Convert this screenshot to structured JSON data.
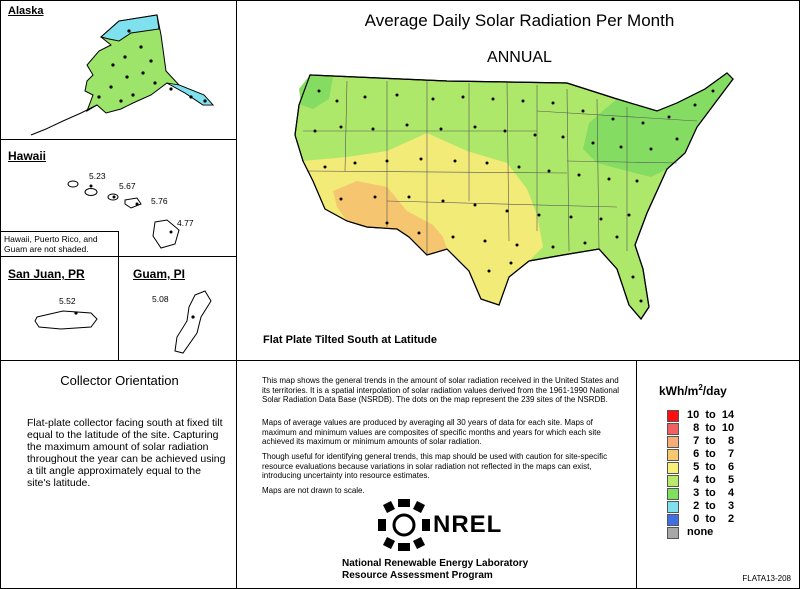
{
  "map_title": "Average Daily Solar Radiation Per Month",
  "period": "ANNUAL",
  "subtitle": "Flat Plate Tilted South at Latitude",
  "insets": {
    "alaska": {
      "title": "Alaska"
    },
    "hawaii": {
      "title": "Hawaii",
      "values": [
        "5.23",
        "5.67",
        "5.76",
        "4.77"
      ],
      "note": "Hawaii, Puerto Rico, and Guam are not shaded."
    },
    "sanjuan": {
      "title": "San Juan, PR",
      "value": "5.52"
    },
    "guam": {
      "title": "Guam, PI",
      "value": "5.08"
    }
  },
  "orientation": {
    "heading": "Collector Orientation",
    "text": "Flat-plate collector facing south at fixed tilt equal to the latitude of the site. Capturing the maximum amount of solar radiation throughout the year can be achieved using a tilt angle approximately equal to the site's latitude."
  },
  "description": {
    "p1": "This map shows the general trends in the amount of solar radiation received in the United States and its territories. It is a spatial interpolation of solar radiation values derived from the 1961-1990 National Solar Radiation Data Base (NSRDB). The dots on the map represent the 239 sites of the NSRDB.",
    "p2": "Maps of average values are produced by averaging all 30 years of data for each site. Maps of maximum and minimum values are composites of specific months and years for which each site achieved its maximum or minimum amounts of solar radiation.",
    "p3": "Though useful for identifying general trends, this map should be used with caution for site-specific resource evaluations because variations in solar radiation not reflected in the maps can exist, introducing uncertainty into resource estimates.",
    "p4": "Maps are not drawn to scale."
  },
  "legend": {
    "unit": "kWh/m",
    "unit_sup": "2",
    "unit_suffix": "/day",
    "items": [
      {
        "label": "10  to  14",
        "color": "#ff1010"
      },
      {
        "label": "  8  to  10",
        "color": "#f06060"
      },
      {
        "label": "  7  to    8",
        "color": "#f5ae78"
      },
      {
        "label": "  6  to    7",
        "color": "#f7c870"
      },
      {
        "label": "  5  to    6",
        "color": "#f6f07a"
      },
      {
        "label": "  4  to    5",
        "color": "#b9e96b"
      },
      {
        "label": "  3  to    4",
        "color": "#7fe05f"
      },
      {
        "label": "  2  to    3",
        "color": "#7fe0ee"
      },
      {
        "label": "  0  to    2",
        "color": "#3f6fe0"
      },
      {
        "label": "none",
        "color": "#a8a8a8"
      }
    ]
  },
  "logo": {
    "text": "NREL"
  },
  "footer": {
    "lab": "National Renewable Energy Laboratory",
    "program": "Resource Assessment Program",
    "code": "FLATA13-208"
  }
}
